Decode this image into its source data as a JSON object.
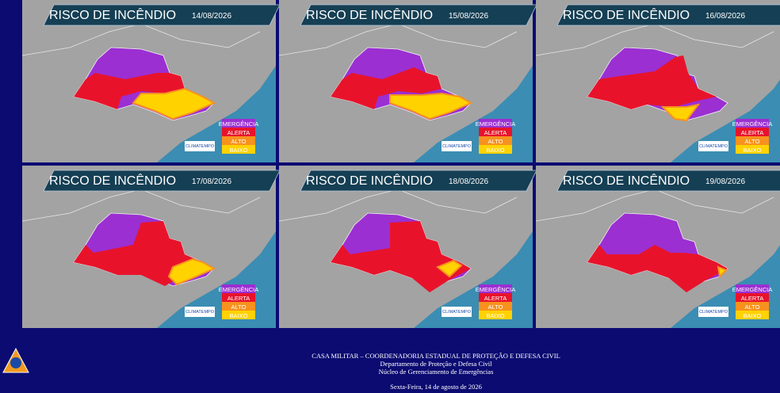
{
  "panels": [
    {
      "title": "RISCO DE INCÊNDIO",
      "date": "14/08/2026",
      "legend": [
        "EMERGÊNCIA",
        "ALERTA",
        "ALTO",
        "BAIXO"
      ],
      "brand": "CLIMATEMPO"
    },
    {
      "title": "RISCO DE INCÊNDIO",
      "date": "15/08/2026",
      "legend": [
        "EMERGÊNCIA",
        "ALERTA",
        "ALTO",
        "BAIXO"
      ],
      "brand": "CLIMATEMPO"
    },
    {
      "title": "RISCO DE INCÊNDIO",
      "date": "16/08/2026",
      "legend": [
        "EMERGÊNCIA",
        "ALERTA",
        "ALTO",
        "BAIXO"
      ],
      "brand": "CLIMATEMPO"
    },
    {
      "title": "RISCO DE INCÊNDIO",
      "date": "17/08/2026",
      "legend": [
        "EMERGÊNCIA",
        "ALERTA",
        "ALTO",
        "BAIXO"
      ],
      "brand": "CLIMATEMPO"
    },
    {
      "title": "RISCO DE INCÊNDIO",
      "date": "18/08/2026",
      "legend": [
        "EMERGÊNCIA",
        "ALERTA",
        "ALTO",
        "BAIXO"
      ],
      "brand": "CLIMATEMPO"
    },
    {
      "title": "RISCO DE INCÊNDIO",
      "date": "19/08/2026",
      "legend": [
        "EMERGÊNCIA",
        "ALERTA",
        "ALTO",
        "BAIXO"
      ],
      "brand": "CLIMATEMPO"
    }
  ],
  "footer": {
    "line1": "CASA MILITAR – COORDENADORIA ESTADUAL DE PROTEÇÃO E DEFESA CIVIL",
    "line2": "Departamento de Proteção e Defesa Civil",
    "line3": "Núcleo de Gerenciamento de Emergências",
    "date": "Sexta-Feira, 14 de agosto de 2026"
  }
}
